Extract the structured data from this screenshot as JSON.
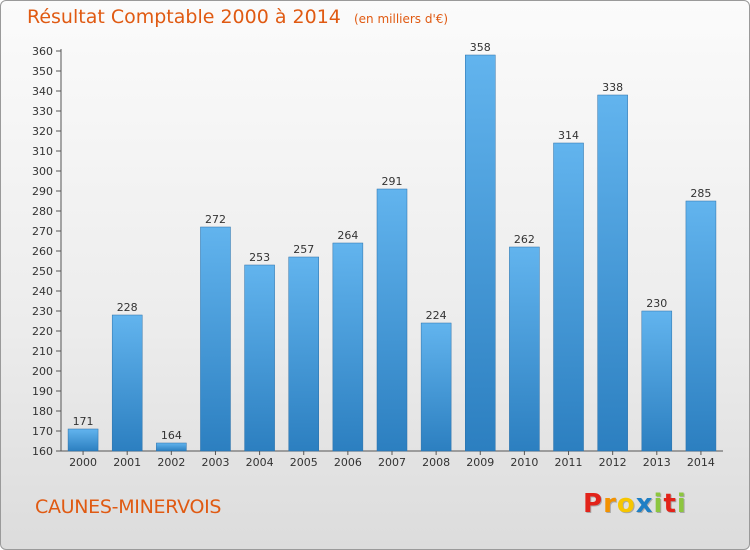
{
  "header": {
    "title": "Résultat Comptable 2000 à 2014",
    "subtitle": "(en milliers d'€)"
  },
  "footer": {
    "town": "CAUNES-MINERVOIS",
    "logo_letters": [
      "P",
      "r",
      "o",
      "x",
      "i",
      "t",
      "i"
    ],
    "logo_colors": [
      "#e2231a",
      "#f39200",
      "#f7c600",
      "#1e7fc5",
      "#8dc63f",
      "#e2231a",
      "#8dc63f"
    ]
  },
  "chart_data": {
    "type": "bar",
    "title": "Résultat Comptable 2000 à 2014",
    "subtitle": "(en milliers d'€)",
    "categories": [
      "2000",
      "2001",
      "2002",
      "2003",
      "2004",
      "2005",
      "2006",
      "2007",
      "2008",
      "2009",
      "2010",
      "2011",
      "2012",
      "2013",
      "2014"
    ],
    "values": [
      171,
      228,
      164,
      272,
      253,
      257,
      264,
      291,
      224,
      358,
      262,
      314,
      338,
      230,
      285
    ],
    "ylim": [
      160,
      360
    ],
    "ytick_step": 10,
    "grid": false,
    "bar_color_top": "#62b4ee",
    "bar_color_bottom": "#2c7fc0"
  }
}
